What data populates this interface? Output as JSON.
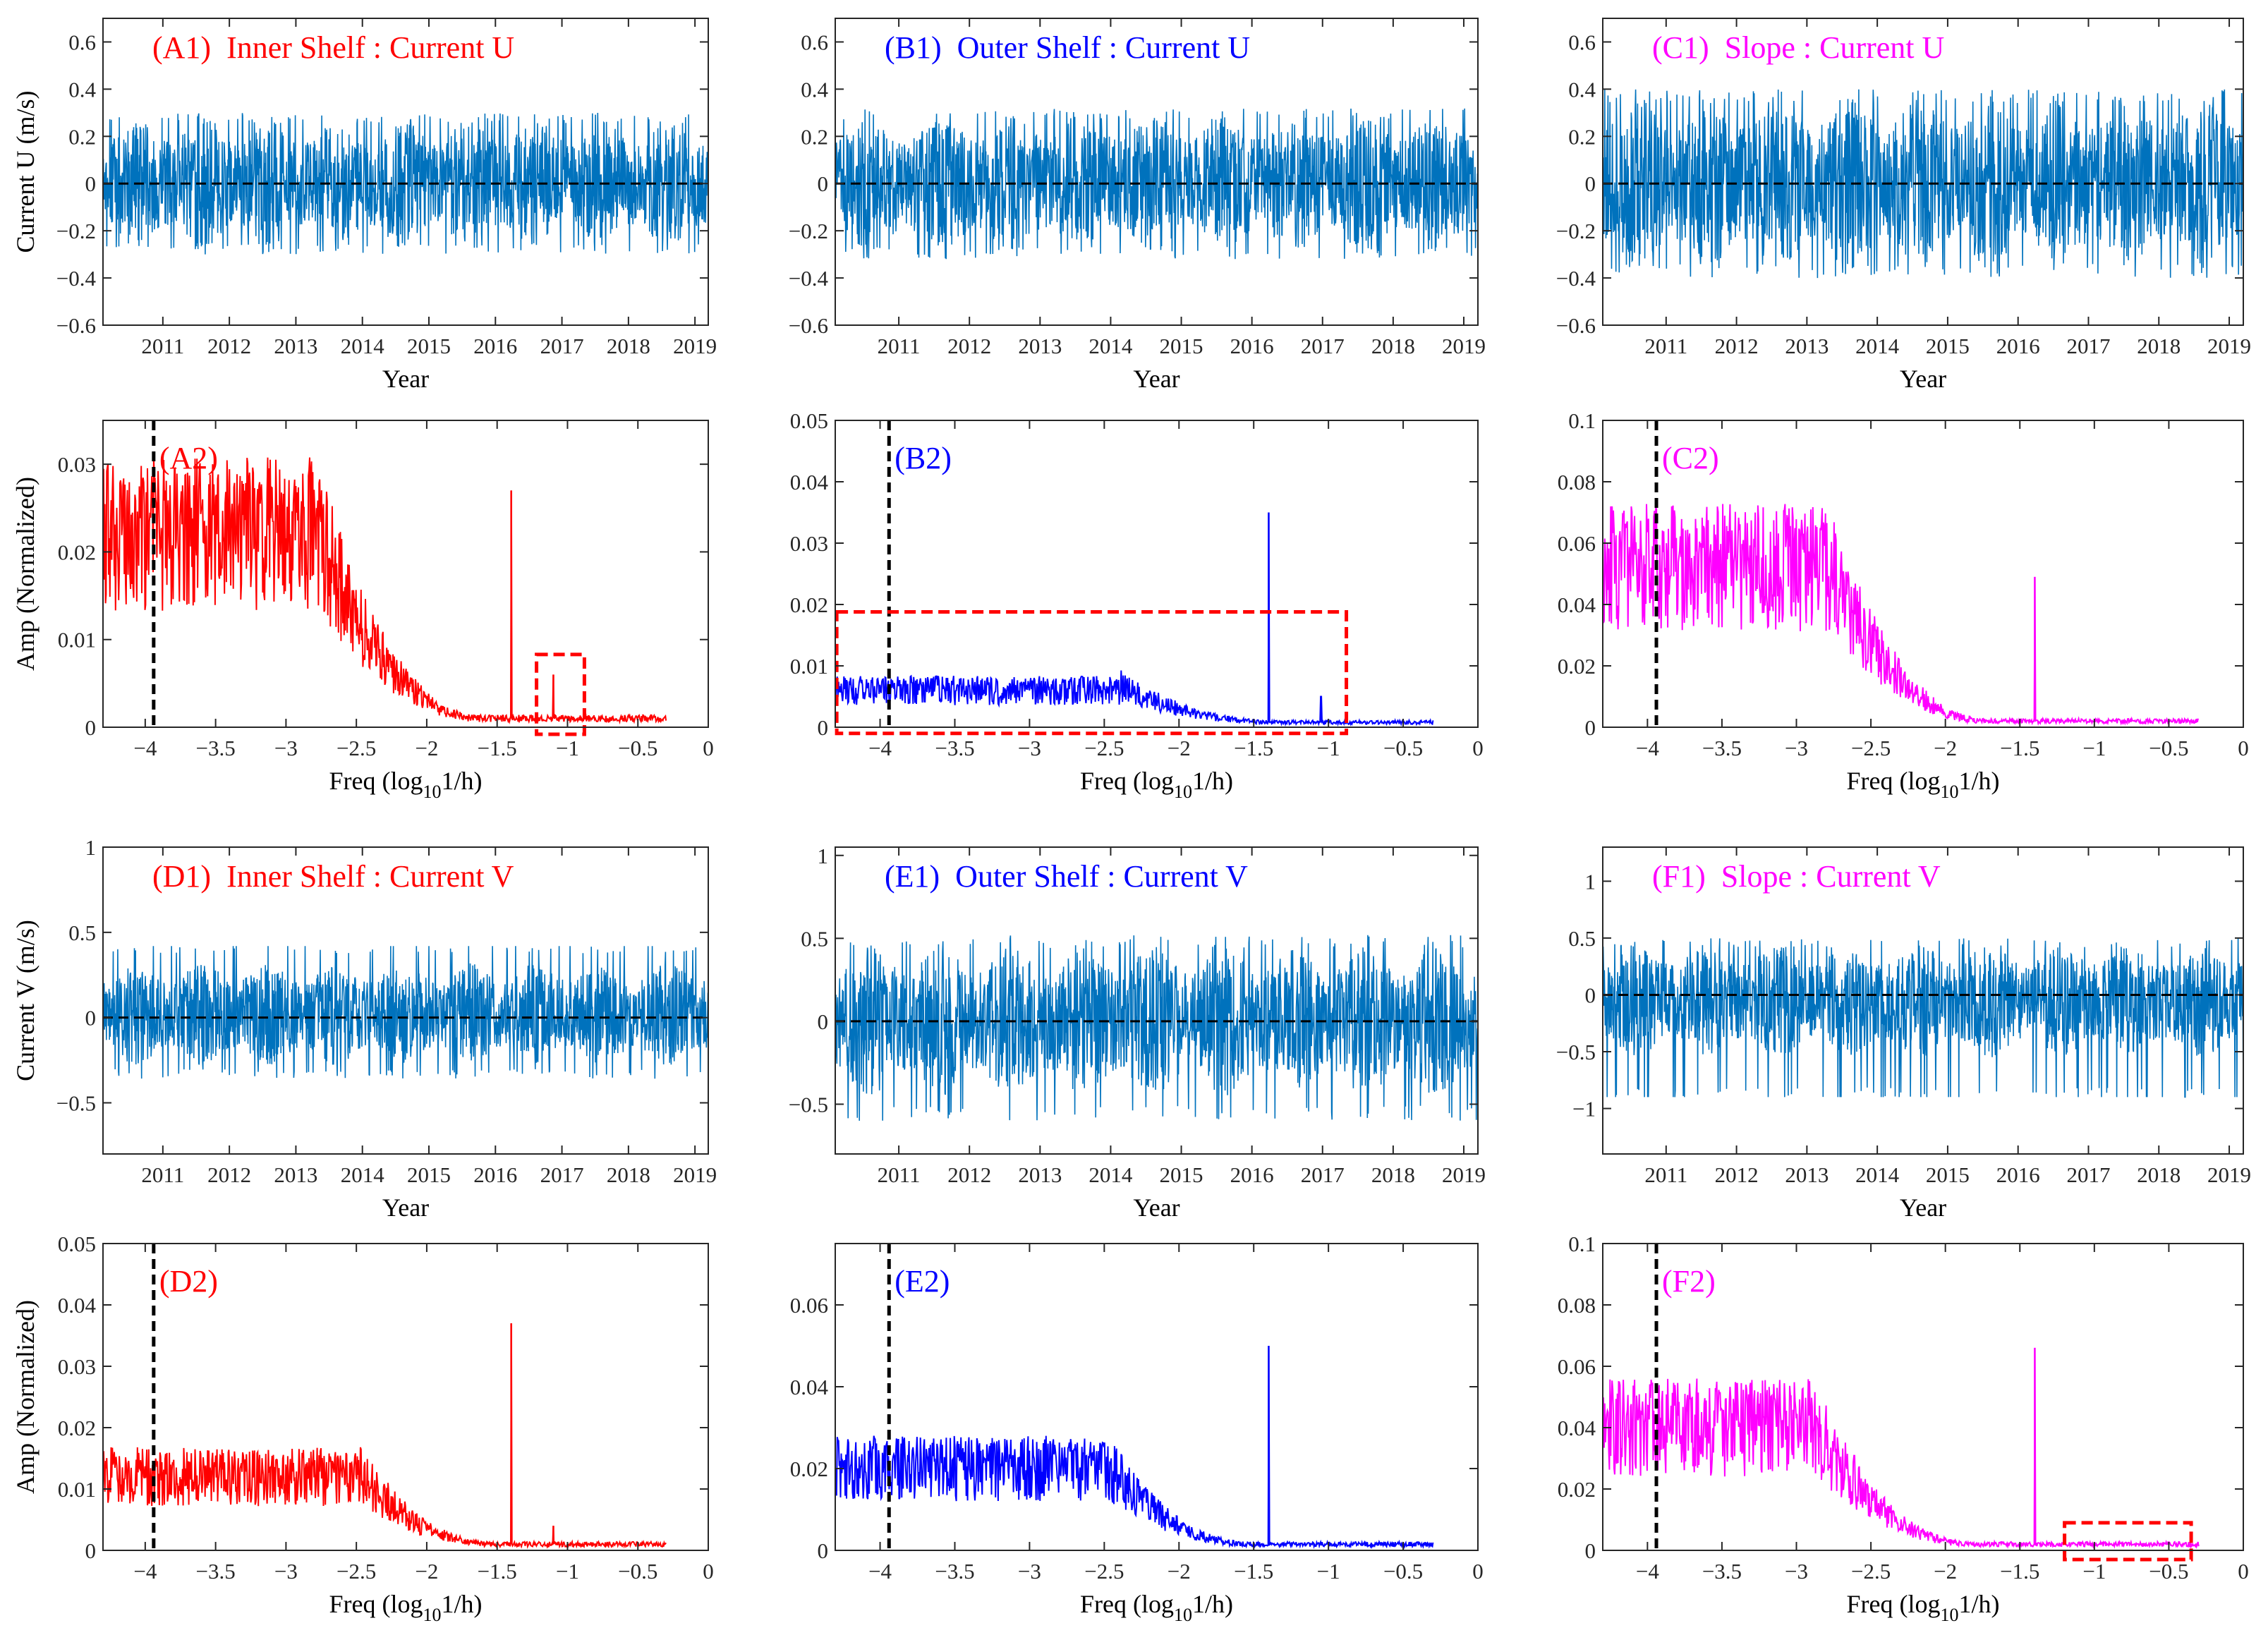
{
  "figure": {
    "series_color": "#0072BD",
    "site_colors": {
      "inner_shelf": "#FF0000",
      "outer_shelf": "#0000FF",
      "slope": "#FF00FF"
    },
    "highlight_box_color": "#FF0000",
    "time_axis": {
      "xlabel": "Year",
      "xlim": [
        2010.1,
        2019.2
      ],
      "ticks": [
        2011,
        2012,
        2013,
        2014,
        2015,
        2016,
        2017,
        2018,
        2019
      ],
      "tick_labels": [
        "2011",
        "2012",
        "2013",
        "2014",
        "2015",
        "2016",
        "2017",
        "2018",
        "2019"
      ]
    },
    "freq_axis": {
      "xlabel_main": "Freq (log",
      "xlabel_sub": "10",
      "xlabel_tail": "1/h)",
      "xlim": [
        -4.3,
        0
      ],
      "ticks": [
        -4,
        -3.5,
        -3,
        -2.5,
        -2,
        -1.5,
        -1,
        -0.5,
        0
      ],
      "tick_labels": [
        "−4",
        "−3.5",
        "−3",
        "−2.5",
        "−2",
        "−1.5",
        "−1",
        "−0.5",
        "0"
      ]
    }
  },
  "chart_data": [
    {
      "id": "A1",
      "type": "line",
      "title": "(A1)  Inner Shelf : Current U",
      "site": "inner_shelf",
      "component": "U",
      "xlabel": "Year",
      "ylabel": "Current U (m/s)",
      "ylim": [
        -0.6,
        0.7
      ],
      "yticks": [
        -0.6,
        -0.4,
        -0.2,
        0,
        0.2,
        0.4,
        0.6
      ],
      "ytick_labels": [
        "−0.6",
        "−0.4",
        "−0.2",
        "0",
        "0.2",
        "0.4",
        "0.6"
      ],
      "zero_line": true,
      "signal": {
        "amplitude_range": [
          -0.3,
          0.3
        ],
        "typical_envelope": 0.27,
        "mean": 0.0
      }
    },
    {
      "id": "B1",
      "type": "line",
      "title": "(B1)  Outer Shelf : Current U",
      "site": "outer_shelf",
      "component": "U",
      "xlabel": "Year",
      "ylabel": "",
      "ylim": [
        -0.6,
        0.7
      ],
      "yticks": [
        -0.6,
        -0.4,
        -0.2,
        0,
        0.2,
        0.4,
        0.6
      ],
      "ytick_labels": [
        "−0.6",
        "−0.4",
        "−0.2",
        "0",
        "0.2",
        "0.4",
        "0.6"
      ],
      "zero_line": true,
      "signal": {
        "amplitude_range": [
          -0.32,
          0.32
        ],
        "typical_envelope": 0.29,
        "mean": 0.0
      }
    },
    {
      "id": "C1",
      "type": "line",
      "title": "(C1)  Slope : Current U",
      "site": "slope",
      "component": "U",
      "xlabel": "Year",
      "ylabel": "",
      "ylim": [
        -0.6,
        0.7
      ],
      "yticks": [
        -0.6,
        -0.4,
        -0.2,
        0,
        0.2,
        0.4,
        0.6
      ],
      "ytick_labels": [
        "−0.6",
        "−0.4",
        "−0.2",
        "0",
        "0.2",
        "0.4",
        "0.6"
      ],
      "zero_line": true,
      "signal": {
        "amplitude_range": [
          -0.4,
          0.4
        ],
        "typical_envelope": 0.36,
        "mean": 0.0
      }
    },
    {
      "id": "A2",
      "type": "line",
      "title": "(A2)",
      "site": "inner_shelf",
      "component": "U",
      "xlabel": "Freq (log10 1/h)",
      "ylabel": "Amp (Normalized)",
      "ylim": [
        0,
        0.035
      ],
      "yticks": [
        0,
        0.01,
        0.02,
        0.03
      ],
      "ytick_labels": [
        "0",
        "0.01",
        "0.02",
        "0.03"
      ],
      "dashed_vline": -3.94,
      "spectrum": {
        "x_range": [
          -4.3,
          -0.3
        ],
        "low_level": 0.022,
        "plateau_end": -2.8,
        "rolloff_end": -1.6,
        "tail_level": 0.001,
        "peak_x": -1.4,
        "peak_y": 0.027,
        "secondary_peak_x": -1.1,
        "secondary_peak_y": 0.006
      },
      "highlight_box": {
        "x": [
          -1.22,
          -0.88
        ],
        "y": [
          -0.0008,
          0.0083
        ]
      }
    },
    {
      "id": "B2",
      "type": "line",
      "title": "(B2)",
      "site": "outer_shelf",
      "component": "U",
      "xlabel": "Freq (log10 1/h)",
      "ylabel": "",
      "ylim": [
        0,
        0.05
      ],
      "yticks": [
        0,
        0.01,
        0.02,
        0.03,
        0.04,
        0.05
      ],
      "ytick_labels": [
        "0",
        "0.01",
        "0.02",
        "0.03",
        "0.04",
        "0.05"
      ],
      "dashed_vline": -3.94,
      "spectrum": {
        "x_range": [
          -4.3,
          -0.3
        ],
        "low_level": 0.006,
        "plateau_end": -2.4,
        "rolloff_end": -1.3,
        "tail_level": 0.0008,
        "peak_x": -1.4,
        "peak_y": 0.035,
        "secondary_peak_x": -1.05,
        "secondary_peak_y": 0.005
      },
      "highlight_box": {
        "x": [
          -4.29,
          -0.88
        ],
        "y": [
          -0.001,
          0.0188
        ]
      }
    },
    {
      "id": "C2",
      "type": "line",
      "title": "(C2)",
      "site": "slope",
      "component": "U",
      "xlabel": "Freq (log10 1/h)",
      "ylabel": "",
      "ylim": [
        0,
        0.1
      ],
      "yticks": [
        0,
        0.02,
        0.04,
        0.06,
        0.08,
        0.1
      ],
      "ytick_labels": [
        "0",
        "0.02",
        "0.04",
        "0.06",
        "0.08",
        "0.1"
      ],
      "dashed_vline": -3.94,
      "spectrum": {
        "x_range": [
          -4.3,
          -0.3
        ],
        "low_level": 0.052,
        "plateau_end": -2.8,
        "rolloff_end": -1.7,
        "tail_level": 0.002,
        "peak_x": -1.4,
        "peak_y": 0.049,
        "secondary_peak_x": null,
        "secondary_peak_y": null
      },
      "highlight_box": null
    },
    {
      "id": "D1",
      "type": "line",
      "title": "(D1)  Inner Shelf : Current V",
      "site": "inner_shelf",
      "component": "V",
      "xlabel": "Year",
      "ylabel": "Current V (m/s)",
      "ylim": [
        -0.8,
        1.0
      ],
      "yticks": [
        -0.5,
        0,
        0.5,
        1
      ],
      "ytick_labels": [
        "−0.5",
        "0",
        "0.5",
        "1"
      ],
      "zero_line": true,
      "signal": {
        "amplitude_range": [
          -0.38,
          0.42
        ],
        "typical_envelope": 0.3,
        "mean": 0.02
      }
    },
    {
      "id": "E1",
      "type": "line",
      "title": "(E1)  Outer Shelf : Current V",
      "site": "outer_shelf",
      "component": "V",
      "xlabel": "Year",
      "ylabel": "",
      "ylim": [
        -0.8,
        1.05
      ],
      "yticks": [
        -0.5,
        0,
        0.5,
        1
      ],
      "ytick_labels": [
        "−0.5",
        "0",
        "0.5",
        "1"
      ],
      "zero_line": true,
      "signal": {
        "amplitude_range": [
          -0.6,
          0.52
        ],
        "typical_envelope": 0.45,
        "mean": 0.0
      }
    },
    {
      "id": "F1",
      "type": "line",
      "title": "(F1)  Slope : Current V",
      "site": "slope",
      "component": "V",
      "xlabel": "Year",
      "ylabel": "",
      "ylim": [
        -1.4,
        1.3
      ],
      "yticks": [
        -1,
        -0.5,
        0,
        0.5,
        1
      ],
      "ytick_labels": [
        "−1",
        "−0.5",
        "0",
        "0.5",
        "1"
      ],
      "zero_line": true,
      "signal": {
        "amplitude_range": [
          -0.9,
          0.55
        ],
        "typical_envelope": 0.5,
        "mean": -0.05
      }
    },
    {
      "id": "D2",
      "type": "line",
      "title": "(D2)",
      "site": "inner_shelf",
      "component": "V",
      "xlabel": "Freq (log10 1/h)",
      "ylabel": "Amp (Normalized)",
      "ylim": [
        0,
        0.05
      ],
      "yticks": [
        0,
        0.01,
        0.02,
        0.03,
        0.04,
        0.05
      ],
      "ytick_labels": [
        "0",
        "0.01",
        "0.02",
        "0.03",
        "0.04",
        "0.05"
      ],
      "dashed_vline": -3.94,
      "spectrum": {
        "x_range": [
          -4.3,
          -0.3
        ],
        "low_level": 0.012,
        "plateau_end": -2.5,
        "rolloff_end": -1.5,
        "tail_level": 0.001,
        "peak_x": -1.4,
        "peak_y": 0.037,
        "secondary_peak_x": -1.1,
        "secondary_peak_y": 0.004
      },
      "highlight_box": null
    },
    {
      "id": "E2",
      "type": "line",
      "title": "(E2)",
      "site": "outer_shelf",
      "component": "V",
      "xlabel": "Freq (log10 1/h)",
      "ylabel": "",
      "ylim": [
        0,
        0.075
      ],
      "yticks": [
        0,
        0.02,
        0.04,
        0.06
      ],
      "ytick_labels": [
        "0",
        "0.02",
        "0.04",
        "0.06"
      ],
      "dashed_vline": -3.94,
      "spectrum": {
        "x_range": [
          -4.3,
          -0.3
        ],
        "low_level": 0.02,
        "plateau_end": -2.5,
        "rolloff_end": -1.5,
        "tail_level": 0.0015,
        "peak_x": -1.4,
        "peak_y": 0.05,
        "secondary_peak_x": null,
        "secondary_peak_y": null
      },
      "highlight_box": null
    },
    {
      "id": "F2",
      "type": "line",
      "title": "(F2)",
      "site": "slope",
      "component": "V",
      "xlabel": "Freq (log10 1/h)",
      "ylabel": "",
      "ylim": [
        0,
        0.1
      ],
      "yticks": [
        0,
        0.02,
        0.04,
        0.06,
        0.08,
        0.1
      ],
      "ytick_labels": [
        "0",
        "0.02",
        "0.04",
        "0.06",
        "0.08",
        "0.1"
      ],
      "dashed_vline": -3.94,
      "spectrum": {
        "x_range": [
          -4.3,
          -0.3
        ],
        "low_level": 0.04,
        "plateau_end": -2.9,
        "rolloff_end": -1.8,
        "tail_level": 0.002,
        "peak_x": -1.4,
        "peak_y": 0.066,
        "secondary_peak_x": null,
        "secondary_peak_y": null
      },
      "highlight_box": {
        "x": [
          -1.2,
          -0.35
        ],
        "y": [
          -0.003,
          0.009
        ]
      }
    }
  ]
}
